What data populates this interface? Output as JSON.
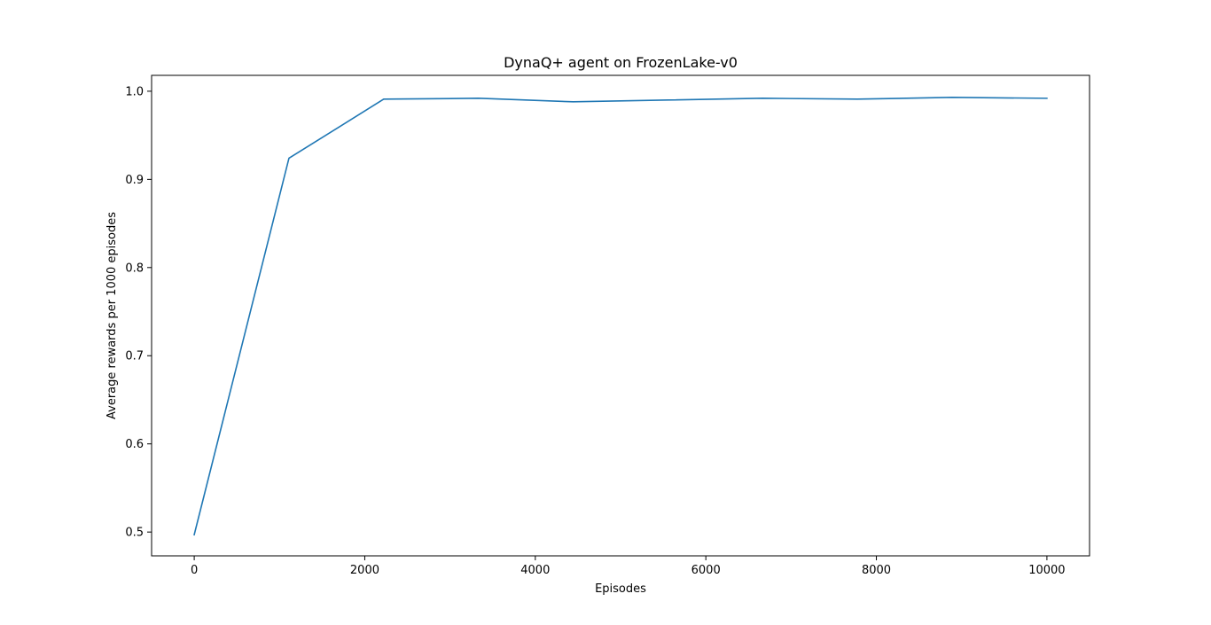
{
  "chart_data": {
    "type": "line",
    "title": "DynaQ+ agent on FrozenLake-v0",
    "xlabel": "Episodes",
    "ylabel": "Average rewards per 1000 episodes",
    "xlim": [
      -500,
      10500
    ],
    "ylim": [
      0.473,
      1.018
    ],
    "x_ticks": [
      0,
      2000,
      4000,
      6000,
      8000,
      10000
    ],
    "y_ticks": [
      0.5,
      0.6,
      0.7,
      0.8,
      0.9,
      1.0
    ],
    "x_tick_labels": [
      "0",
      "2000",
      "4000",
      "6000",
      "8000",
      "10000"
    ],
    "y_tick_labels": [
      "0.5",
      "0.6",
      "0.7",
      "0.8",
      "0.9",
      "1.0"
    ],
    "grid": false,
    "series": [
      {
        "color": "#1f77b4",
        "x": [
          0,
          1111,
          2222,
          3333,
          4444,
          5556,
          6667,
          7778,
          8889,
          10000
        ],
        "y": [
          0.497,
          0.924,
          0.991,
          0.992,
          0.988,
          0.99,
          0.992,
          0.991,
          0.993,
          0.992
        ]
      }
    ]
  }
}
